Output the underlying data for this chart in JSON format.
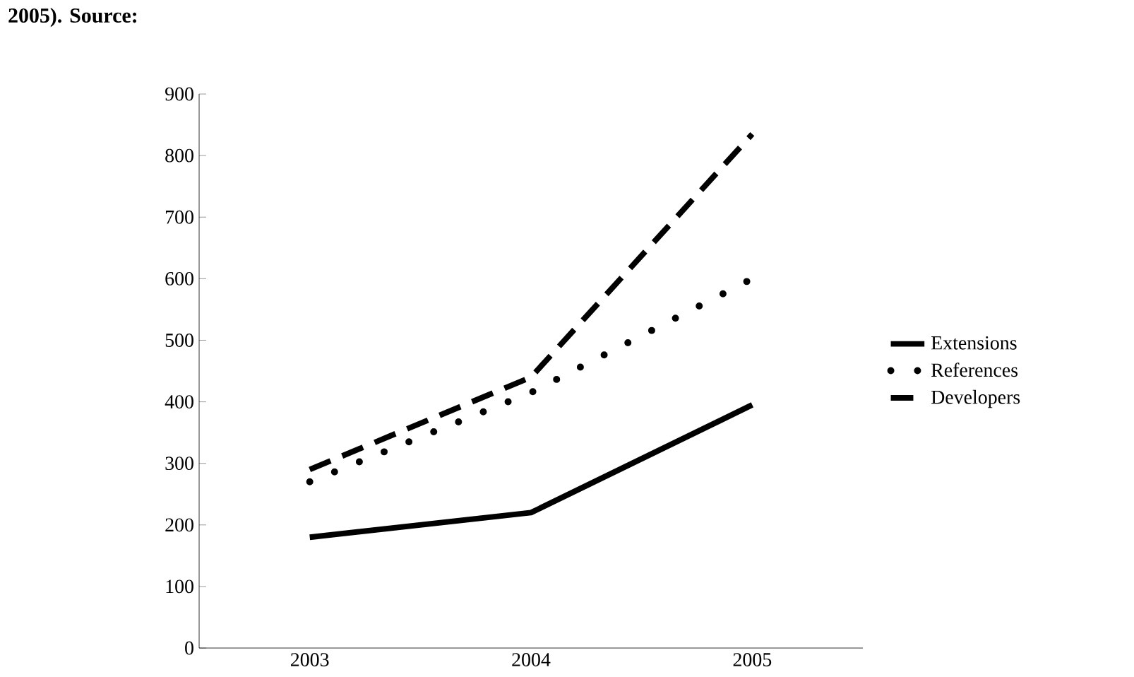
{
  "chart_data": {
    "type": "line",
    "annotations": [
      "2005). Source:"
    ],
    "categories": [
      "2003",
      "2004",
      "2005"
    ],
    "ylim": [
      0,
      900
    ],
    "yticks": [
      0,
      100,
      200,
      300,
      400,
      500,
      600,
      700,
      800,
      900
    ],
    "legend": "right",
    "grid": false,
    "series": [
      {
        "name": "Extensions",
        "color": "#000000",
        "line_style": "solid",
        "values": [
          180,
          220,
          395
        ]
      },
      {
        "name": "References",
        "color": "#000000",
        "line_style": "dotted",
        "values": [
          270,
          415,
          600
        ]
      },
      {
        "name": "Developers",
        "color": "#000000",
        "line_style": "dashed",
        "values": [
          290,
          440,
          835
        ]
      }
    ]
  }
}
